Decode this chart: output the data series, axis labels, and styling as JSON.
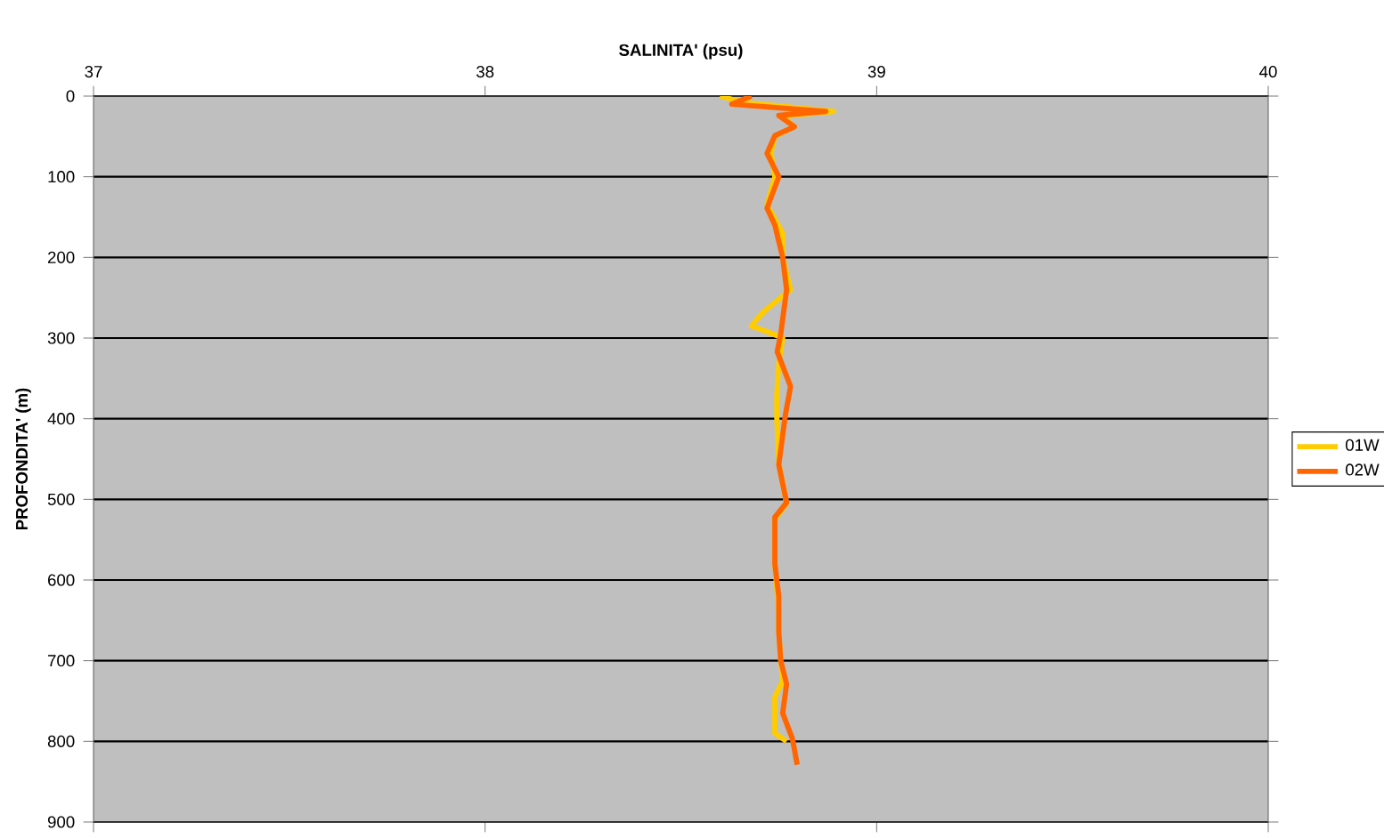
{
  "chart_data": {
    "type": "line",
    "xlabel": "SALINITA' (psu)",
    "ylabel": "PROFONDITA' (m)",
    "xlim": [
      37,
      40
    ],
    "xticks": [
      37,
      38,
      39,
      40
    ],
    "ylim": [
      900,
      0
    ],
    "yticks": [
      0,
      100,
      200,
      300,
      400,
      500,
      600,
      700,
      800,
      900
    ],
    "grid": "y",
    "legend": "right",
    "marker": "none",
    "line_style": "solid",
    "series": [
      {
        "name": "01W",
        "color": "#ffcc00",
        "x": [
          38.6,
          38.66,
          38.89,
          38.76,
          38.79,
          38.74,
          38.73,
          38.74,
          38.72,
          38.76,
          38.76,
          38.78,
          38.71,
          38.68,
          38.72,
          38.76,
          38.75,
          38.745,
          38.745,
          38.75,
          38.77,
          38.74,
          38.74,
          38.75,
          38.75,
          38.755,
          38.76,
          38.74,
          38.74,
          38.77
        ],
        "values": [
          0,
          8,
          19,
          25,
          38,
          50,
          70,
          100,
          135,
          170,
          200,
          240,
          268,
          285,
          292,
          300,
          330,
          370,
          400,
          455,
          505,
          525,
          580,
          640,
          665,
          700,
          725,
          745,
          790,
          800
        ]
      },
      {
        "name": "02W",
        "color": "#ff6600",
        "x": [
          38.68,
          38.63,
          38.87,
          38.75,
          38.79,
          38.74,
          38.72,
          38.75,
          38.72,
          38.74,
          38.76,
          38.77,
          38.755,
          38.746,
          38.78,
          38.767,
          38.75,
          38.77,
          38.74,
          38.74,
          38.75,
          38.75,
          38.755,
          38.77,
          38.76,
          38.785,
          38.797
        ],
        "values": [
          0,
          10,
          19,
          24,
          38,
          49,
          71,
          100,
          139,
          160,
          200,
          240,
          295,
          317,
          360,
          395,
          457,
          504,
          522,
          580,
          620,
          664,
          700,
          729,
          765,
          797,
          829
        ]
      }
    ]
  }
}
